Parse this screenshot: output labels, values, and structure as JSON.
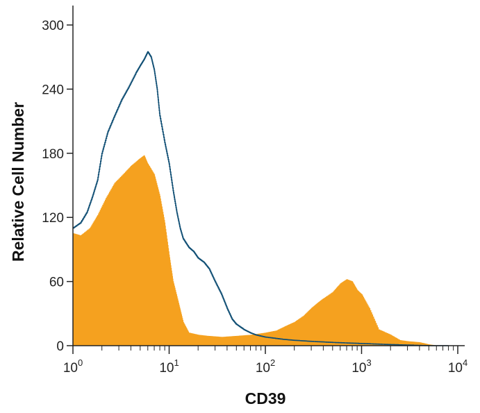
{
  "chart_data": {
    "type": "area",
    "title": "",
    "xlabel": "CD39",
    "ylabel": "Relative Cell Number",
    "x_scale": "log",
    "xlim": [
      1,
      10000
    ],
    "ylim": [
      0,
      300
    ],
    "grid": false,
    "y_ticks": [
      0,
      60,
      120,
      180,
      240,
      300
    ],
    "y_tick_labels": [
      "0",
      "60",
      "120",
      "180",
      "240",
      "300"
    ],
    "x_ticks": [
      1,
      10,
      100,
      1000,
      10000
    ],
    "x_tick_labels": [
      {
        "base": "10",
        "exp": "0"
      },
      {
        "base": "10",
        "exp": "1"
      },
      {
        "base": "10",
        "exp": "2"
      },
      {
        "base": "10",
        "exp": "3"
      },
      {
        "base": "10",
        "exp": "4"
      }
    ],
    "series": [
      {
        "style": "filled",
        "color": "#F5A11F",
        "x": [
          1,
          1.2,
          1.5,
          1.8,
          2.2,
          2.7,
          3.3,
          4,
          4.8,
          5.5,
          6,
          7,
          8,
          9,
          10,
          11,
          12.5,
          14,
          16,
          20,
          25,
          35,
          50,
          70,
          100,
          130,
          160,
          200,
          250,
          300,
          350,
          400,
          500,
          600,
          700,
          800,
          900,
          1000,
          1200,
          1500,
          2000,
          2500,
          3000,
          4000,
          5000,
          6000
        ],
        "y": [
          105,
          103,
          110,
          122,
          138,
          152,
          160,
          168,
          174,
          178,
          170,
          160,
          140,
          115,
          85,
          60,
          40,
          22,
          12,
          10,
          9,
          8,
          9,
          10,
          12,
          14,
          18,
          22,
          28,
          35,
          40,
          44,
          50,
          58,
          62,
          60,
          52,
          48,
          35,
          15,
          10,
          5,
          4,
          3,
          1,
          0
        ]
      },
      {
        "style": "outline",
        "color": "#0E4D73",
        "x": [
          1,
          1.2,
          1.4,
          1.6,
          1.8,
          2,
          2.3,
          2.7,
          3.2,
          3.8,
          4.5,
          5,
          5.5,
          6,
          6.5,
          7,
          7.5,
          8,
          9,
          10,
          11,
          12,
          13,
          14,
          16,
          18,
          20,
          23,
          26,
          30,
          35,
          40,
          45,
          50,
          60,
          70,
          80,
          100,
          150,
          200,
          300,
          500,
          1000,
          2000,
          5000,
          8000
        ],
        "y": [
          110,
          115,
          125,
          140,
          155,
          180,
          200,
          215,
          230,
          242,
          255,
          262,
          268,
          275,
          270,
          258,
          240,
          215,
          190,
          170,
          145,
          125,
          110,
          100,
          92,
          88,
          82,
          78,
          72,
          60,
          48,
          35,
          25,
          20,
          15,
          12,
          10,
          8,
          6,
          5,
          4,
          3,
          2,
          1,
          0,
          0
        ]
      }
    ]
  }
}
